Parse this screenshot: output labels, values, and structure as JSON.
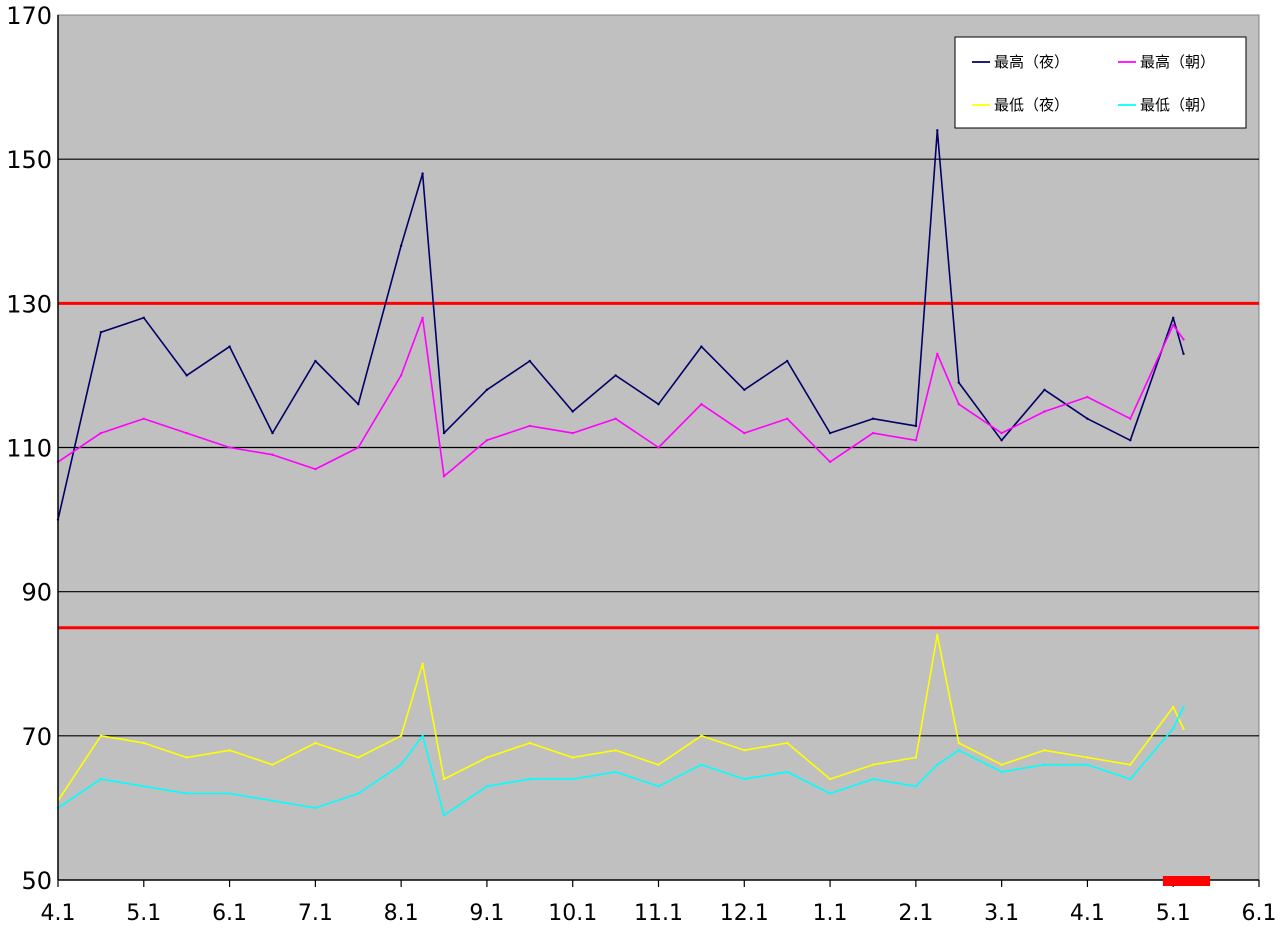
{
  "chart_data": {
    "type": "line",
    "title": "",
    "xlabel": "",
    "ylabel": "",
    "ylim": [
      50,
      170
    ],
    "xlim": [
      0,
      14
    ],
    "y_ticks": [
      "170",
      "150",
      "130",
      "110",
      "90",
      "70",
      "50"
    ],
    "x_tick_labels": [
      "4.1",
      "5.1",
      "6.1",
      "7.1",
      "8.1",
      "9.1",
      "10.1",
      "11.1",
      "12.1",
      "1.1",
      "2.1",
      "3.1",
      "4.1",
      "5.1",
      "6.1"
    ],
    "grid": "horizontal",
    "legend": "top-right",
    "reference_lines": [
      {
        "value": 130,
        "color": "#ff0000"
      },
      {
        "value": 85,
        "color": "#ff0000"
      }
    ],
    "marker_bar": {
      "x_start": 12.88,
      "x_end": 13.43,
      "color": "#ff0000"
    },
    "x": [
      0,
      0.5,
      1,
      1.5,
      2,
      2.5,
      3,
      3.5,
      4,
      4.25,
      4.5,
      5,
      5.5,
      6,
      6.5,
      7,
      7.5,
      8,
      8.5,
      9,
      9.5,
      10,
      10.25,
      10.5,
      11,
      11.5,
      12,
      12.5,
      13,
      13.12
    ],
    "series": [
      {
        "name": "最高（夜）",
        "color": "#000066",
        "values": [
          100,
          126,
          128,
          120,
          124,
          112,
          122,
          116,
          138,
          148,
          112,
          118,
          122,
          115,
          120,
          116,
          124,
          118,
          122,
          112,
          114,
          113,
          154,
          119,
          111,
          118,
          114,
          111,
          128,
          123
        ]
      },
      {
        "name": "最高（朝）",
        "color": "#ff00ff",
        "values": [
          108,
          112,
          114,
          112,
          110,
          109,
          107,
          110,
          120,
          128,
          106,
          111,
          113,
          112,
          114,
          110,
          116,
          112,
          114,
          108,
          112,
          111,
          123,
          116,
          112,
          115,
          117,
          114,
          127,
          125
        ]
      },
      {
        "name": "最低（夜）",
        "color": "#ffff00",
        "values": [
          61,
          70,
          69,
          67,
          68,
          66,
          69,
          67,
          70,
          80,
          64,
          67,
          69,
          67,
          68,
          66,
          70,
          68,
          69,
          64,
          66,
          67,
          84,
          69,
          66,
          68,
          67,
          66,
          74,
          71
        ]
      },
      {
        "name": "最低（朝）",
        "color": "#00ffff",
        "values": [
          60,
          64,
          63,
          62,
          62,
          61,
          60,
          62,
          66,
          70,
          59,
          63,
          64,
          64,
          65,
          63,
          66,
          64,
          65,
          62,
          64,
          63,
          66,
          68,
          65,
          66,
          66,
          64,
          71,
          74
        ]
      }
    ]
  }
}
